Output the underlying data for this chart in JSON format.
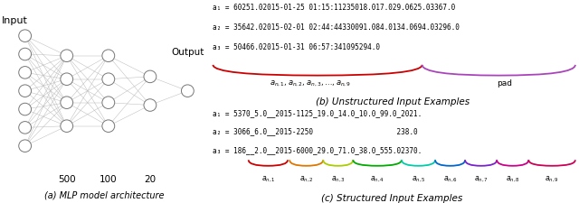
{
  "fig_width": 6.4,
  "fig_height": 2.26,
  "dpi": 100,
  "bg_color": "#ffffff",
  "mlp_caption": "(a) MLP model architecture",
  "unstructured_caption": "(b) Unstructured Input Examples",
  "structured_caption": "(c) Structured Input Examples",
  "unstructured_lines": [
    "a₁ = 60251.02015-01-25 01:15:11235018.017.029.0625.03367.0",
    "a₂ = 35642.02015-02-01 02:44:44330091.084.0134.0694.03296.0",
    "a₃ = 50466.02015-01-31 06:57:341095294.0"
  ],
  "structured_lines": [
    "a₁ = 5370_5.0__2015-1125_19.0_14.0_10.0_99.0_2021.",
    "a₂ = 3066_6.0__2015-2250                    238.0",
    "a₃ = 186__2.0__2015-6000_29.0_71.0_38.0_555.02370."
  ],
  "brace_colors_structured": [
    "#cc0000",
    "#dd7700",
    "#aacc00",
    "#00aa00",
    "#00ccaa",
    "#0066cc",
    "#7722cc",
    "#cc0088",
    "#cc0055"
  ],
  "layer_sizes": [
    7,
    4,
    4,
    2,
    1
  ],
  "layer_labels": [
    "",
    "500",
    "100",
    "20",
    ""
  ],
  "input_label": "Input",
  "output_label": "Output"
}
